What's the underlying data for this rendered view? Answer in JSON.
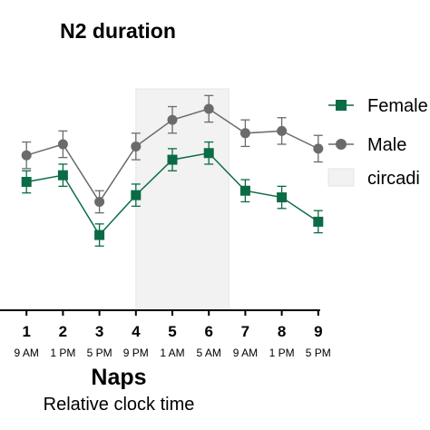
{
  "chart_data": {
    "type": "line",
    "title": "N2 duration",
    "xlabel": "Naps",
    "xlabel_sub": "Relative clock time",
    "categories": [
      "1",
      "2",
      "3",
      "4",
      "5",
      "6",
      "7",
      "8",
      "9"
    ],
    "time_labels": [
      "9 AM",
      "1 PM",
      "5 PM",
      "9 PM",
      "1 AM",
      "5 AM",
      "9 AM",
      "1 PM",
      "5 PM"
    ],
    "y_hidden": true,
    "ylim": [
      0,
      100
    ],
    "shaded_region": {
      "from": 4,
      "to": 6.55,
      "label": "circadi",
      "color": "#f2f2f2"
    },
    "series": [
      {
        "name": "Female",
        "marker": "square",
        "color": "#0b6b45",
        "values": [
          58,
          61,
          34,
          52,
          68,
          71,
          54,
          51,
          40
        ],
        "errors": [
          5,
          5,
          5,
          5,
          5,
          5,
          5,
          5,
          5
        ]
      },
      {
        "name": "Male",
        "marker": "circle",
        "color": "#6b6b6b",
        "values": [
          70,
          75,
          49,
          74,
          86,
          91,
          80,
          81,
          73
        ],
        "errors": [
          6,
          6,
          5,
          6,
          6,
          6,
          6,
          6,
          6
        ]
      }
    ],
    "legend": [
      "Female",
      "Male",
      "circadi"
    ],
    "legend_position": "right",
    "grid": false
  }
}
